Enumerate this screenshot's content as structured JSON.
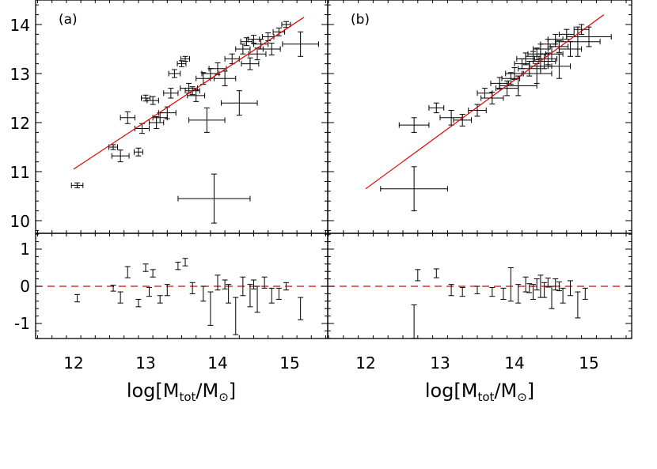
{
  "colors": {
    "fit_line": "#e00000",
    "zero_line": "#e00000",
    "points": "#000000",
    "frame": "#000000"
  },
  "x_axis": {
    "title_prefix": "log[M",
    "title_sub1": "tot",
    "title_mid": "/M",
    "title_sun": "⊙",
    "title_suffix": "]",
    "panels": [
      {
        "ticks": [
          "12",
          "13",
          "14",
          "15"
        ]
      },
      {
        "ticks": [
          "12",
          "13",
          "14",
          "15"
        ]
      }
    ]
  },
  "chart_data": [
    {
      "type": "scatter",
      "panel_label": "(a)",
      "xlim": [
        11.5,
        15.5
      ],
      "ylim": [
        9.7,
        14.5
      ],
      "y_ticks": [
        "10",
        "11",
        "12",
        "13",
        "14"
      ],
      "fit_line": {
        "x": [
          12.0,
          15.2
        ],
        "y": [
          11.05,
          14.15
        ]
      },
      "representative_error": {
        "x": 13.95,
        "y": 10.45,
        "xerr": 0.5,
        "yerr": 0.5
      },
      "points": [
        {
          "x": 12.05,
          "y": 10.72,
          "xerr": 0.08,
          "yerr": 0.05
        },
        {
          "x": 12.55,
          "y": 11.5,
          "xerr": 0.06,
          "yerr": 0.05
        },
        {
          "x": 12.65,
          "y": 11.32,
          "xerr": 0.12,
          "yerr": 0.12
        },
        {
          "x": 12.9,
          "y": 11.4,
          "xerr": 0.06,
          "yerr": 0.08
        },
        {
          "x": 12.75,
          "y": 12.1,
          "xerr": 0.1,
          "yerr": 0.12
        },
        {
          "x": 12.95,
          "y": 11.88,
          "xerr": 0.1,
          "yerr": 0.1
        },
        {
          "x": 13.0,
          "y": 12.5,
          "xerr": 0.06,
          "yerr": 0.06
        },
        {
          "x": 13.1,
          "y": 12.45,
          "xerr": 0.08,
          "yerr": 0.08
        },
        {
          "x": 13.15,
          "y": 12.0,
          "xerr": 0.1,
          "yerr": 0.12
        },
        {
          "x": 13.3,
          "y": 12.2,
          "xerr": 0.12,
          "yerr": 0.12
        },
        {
          "x": 13.35,
          "y": 12.6,
          "xerr": 0.1,
          "yerr": 0.1
        },
        {
          "x": 13.4,
          "y": 13.0,
          "xerr": 0.08,
          "yerr": 0.08
        },
        {
          "x": 13.5,
          "y": 13.2,
          "xerr": 0.06,
          "yerr": 0.06
        },
        {
          "x": 13.55,
          "y": 13.3,
          "xerr": 0.06,
          "yerr": 0.05
        },
        {
          "x": 13.6,
          "y": 12.7,
          "xerr": 0.12,
          "yerr": 0.1
        },
        {
          "x": 13.7,
          "y": 12.55,
          "xerr": 0.12,
          "yerr": 0.12
        },
        {
          "x": 13.8,
          "y": 12.9,
          "xerr": 0.1,
          "yerr": 0.12
        },
        {
          "x": 13.85,
          "y": 12.05,
          "xerr": 0.25,
          "yerr": 0.25
        },
        {
          "x": 13.9,
          "y": 13.0,
          "xerr": 0.12,
          "yerr": 0.1
        },
        {
          "x": 14.0,
          "y": 13.1,
          "xerr": 0.12,
          "yerr": 0.12
        },
        {
          "x": 14.1,
          "y": 12.9,
          "xerr": 0.15,
          "yerr": 0.15
        },
        {
          "x": 14.2,
          "y": 13.3,
          "xerr": 0.1,
          "yerr": 0.1
        },
        {
          "x": 14.3,
          "y": 12.4,
          "xerr": 0.25,
          "yerr": 0.25
        },
        {
          "x": 14.35,
          "y": 13.5,
          "xerr": 0.1,
          "yerr": 0.1
        },
        {
          "x": 14.45,
          "y": 13.2,
          "xerr": 0.12,
          "yerr": 0.12
        },
        {
          "x": 14.5,
          "y": 13.7,
          "xerr": 0.08,
          "yerr": 0.08
        },
        {
          "x": 14.55,
          "y": 13.4,
          "xerr": 0.12,
          "yerr": 0.12
        },
        {
          "x": 14.6,
          "y": 13.6,
          "xerr": 0.1,
          "yerr": 0.1
        },
        {
          "x": 14.7,
          "y": 13.75,
          "xerr": 0.08,
          "yerr": 0.08
        },
        {
          "x": 14.75,
          "y": 13.5,
          "xerr": 0.12,
          "yerr": 0.12
        },
        {
          "x": 14.85,
          "y": 13.85,
          "xerr": 0.08,
          "yerr": 0.08
        },
        {
          "x": 14.95,
          "y": 14.0,
          "xerr": 0.06,
          "yerr": 0.06
        },
        {
          "x": 15.15,
          "y": 13.6,
          "xerr": 0.25,
          "yerr": 0.25
        },
        {
          "x": 14.4,
          "y": 13.65,
          "xerr": 0.08,
          "yerr": 0.08
        },
        {
          "x": 13.65,
          "y": 12.65,
          "xerr": 0.1,
          "yerr": 0.08
        },
        {
          "x": 13.2,
          "y": 12.1,
          "xerr": 0.1,
          "yerr": 0.1
        }
      ],
      "residual_panel": {
        "ylim": [
          -1.4,
          1.4
        ],
        "y_ticks": [
          "-1",
          "0",
          "1"
        ],
        "zero_line": 0,
        "points": [
          {
            "x": 12.05,
            "y": -0.32,
            "yerr": 0.1
          },
          {
            "x": 12.55,
            "y": -0.05,
            "yerr": 0.08
          },
          {
            "x": 12.65,
            "y": -0.3,
            "yerr": 0.15
          },
          {
            "x": 12.75,
            "y": 0.38,
            "yerr": 0.15
          },
          {
            "x": 12.9,
            "y": -0.45,
            "yerr": 0.1
          },
          {
            "x": 13.0,
            "y": 0.5,
            "yerr": 0.1
          },
          {
            "x": 13.05,
            "y": -0.15,
            "yerr": 0.12
          },
          {
            "x": 13.1,
            "y": 0.35,
            "yerr": 0.1
          },
          {
            "x": 13.3,
            "y": -0.1,
            "yerr": 0.15
          },
          {
            "x": 13.45,
            "y": 0.55,
            "yerr": 0.1
          },
          {
            "x": 13.55,
            "y": 0.65,
            "yerr": 0.1
          },
          {
            "x": 13.65,
            "y": -0.05,
            "yerr": 0.15
          },
          {
            "x": 13.8,
            "y": -0.2,
            "yerr": 0.2
          },
          {
            "x": 13.9,
            "y": -0.6,
            "yerr": 0.45
          },
          {
            "x": 14.0,
            "y": 0.1,
            "yerr": 0.2
          },
          {
            "x": 14.15,
            "y": -0.2,
            "yerr": 0.25
          },
          {
            "x": 14.25,
            "y": -0.8,
            "yerr": 0.5
          },
          {
            "x": 14.35,
            "y": 0.0,
            "yerr": 0.25
          },
          {
            "x": 14.45,
            "y": -0.25,
            "yerr": 0.3
          },
          {
            "x": 14.55,
            "y": -0.35,
            "yerr": 0.35
          },
          {
            "x": 14.65,
            "y": 0.1,
            "yerr": 0.15
          },
          {
            "x": 14.75,
            "y": -0.25,
            "yerr": 0.2
          },
          {
            "x": 14.85,
            "y": -0.2,
            "yerr": 0.15
          },
          {
            "x": 14.95,
            "y": 0.0,
            "yerr": 0.1
          },
          {
            "x": 15.15,
            "y": -0.6,
            "yerr": 0.3
          },
          {
            "x": 13.2,
            "y": -0.35,
            "yerr": 0.1
          },
          {
            "x": 14.1,
            "y": 0.05,
            "yerr": 0.12
          },
          {
            "x": 14.5,
            "y": 0.05,
            "yerr": 0.12
          }
        ]
      }
    },
    {
      "type": "scatter",
      "panel_label": "(b)",
      "xlim": [
        11.5,
        15.5
      ],
      "ylim": [
        9.7,
        14.5
      ],
      "y_ticks": [
        "10",
        "11",
        "12",
        "13",
        "14"
      ],
      "fit_line": {
        "x": [
          12.0,
          15.2
        ],
        "y": [
          10.65,
          14.2
        ]
      },
      "representative_error": {
        "x": 12.65,
        "y": 10.65,
        "xerr": 0.45,
        "yerr": 0.45
      },
      "points": [
        {
          "x": 12.65,
          "y": 11.95,
          "xerr": 0.2,
          "yerr": 0.15
        },
        {
          "x": 12.95,
          "y": 12.3,
          "xerr": 0.1,
          "yerr": 0.1
        },
        {
          "x": 13.15,
          "y": 12.1,
          "xerr": 0.15,
          "yerr": 0.15
        },
        {
          "x": 13.3,
          "y": 12.05,
          "xerr": 0.12,
          "yerr": 0.12
        },
        {
          "x": 13.5,
          "y": 12.25,
          "xerr": 0.12,
          "yerr": 0.12
        },
        {
          "x": 13.6,
          "y": 12.6,
          "xerr": 0.1,
          "yerr": 0.1
        },
        {
          "x": 13.7,
          "y": 12.5,
          "xerr": 0.15,
          "yerr": 0.12
        },
        {
          "x": 13.8,
          "y": 12.8,
          "xerr": 0.12,
          "yerr": 0.12
        },
        {
          "x": 13.9,
          "y": 12.7,
          "xerr": 0.15,
          "yerr": 0.15
        },
        {
          "x": 14.0,
          "y": 13.0,
          "xerr": 0.12,
          "yerr": 0.12
        },
        {
          "x": 14.05,
          "y": 12.75,
          "xerr": 0.25,
          "yerr": 0.2
        },
        {
          "x": 14.1,
          "y": 13.2,
          "xerr": 0.1,
          "yerr": 0.1
        },
        {
          "x": 14.2,
          "y": 13.1,
          "xerr": 0.15,
          "yerr": 0.15
        },
        {
          "x": 14.25,
          "y": 13.35,
          "xerr": 0.1,
          "yerr": 0.1
        },
        {
          "x": 14.3,
          "y": 13.0,
          "xerr": 0.2,
          "yerr": 0.2
        },
        {
          "x": 14.35,
          "y": 13.5,
          "xerr": 0.1,
          "yerr": 0.1
        },
        {
          "x": 14.4,
          "y": 13.25,
          "xerr": 0.15,
          "yerr": 0.15
        },
        {
          "x": 14.45,
          "y": 13.6,
          "xerr": 0.1,
          "yerr": 0.1
        },
        {
          "x": 14.5,
          "y": 13.4,
          "xerr": 0.15,
          "yerr": 0.15
        },
        {
          "x": 14.55,
          "y": 13.7,
          "xerr": 0.1,
          "yerr": 0.1
        },
        {
          "x": 14.6,
          "y": 13.15,
          "xerr": 0.15,
          "yerr": 0.25
        },
        {
          "x": 14.7,
          "y": 13.8,
          "xerr": 0.1,
          "yerr": 0.1
        },
        {
          "x": 14.75,
          "y": 13.5,
          "xerr": 0.15,
          "yerr": 0.15
        },
        {
          "x": 14.85,
          "y": 13.65,
          "xerr": 0.3,
          "yerr": 0.3
        },
        {
          "x": 14.9,
          "y": 13.9,
          "xerr": 0.1,
          "yerr": 0.1
        },
        {
          "x": 15.0,
          "y": 13.75,
          "xerr": 0.3,
          "yerr": 0.2
        },
        {
          "x": 14.15,
          "y": 13.3,
          "xerr": 0.12,
          "yerr": 0.12
        },
        {
          "x": 14.3,
          "y": 13.4,
          "xerr": 0.12,
          "yerr": 0.12
        },
        {
          "x": 14.45,
          "y": 13.3,
          "xerr": 0.12,
          "yerr": 0.12
        },
        {
          "x": 14.6,
          "y": 13.55,
          "xerr": 0.12,
          "yerr": 0.12
        },
        {
          "x": 13.95,
          "y": 12.9,
          "xerr": 0.12,
          "yerr": 0.12
        },
        {
          "x": 14.35,
          "y": 13.15,
          "xerr": 0.15,
          "yerr": 0.15
        }
      ],
      "residual_panel": {
        "ylim": [
          -1.4,
          1.4
        ],
        "y_ticks": [
          "-1",
          "0",
          "1"
        ],
        "zero_line": 0,
        "points": [
          {
            "x": 12.65,
            "y": -0.95,
            "yerr": 0.45
          },
          {
            "x": 12.7,
            "y": 0.3,
            "yerr": 0.15
          },
          {
            "x": 12.95,
            "y": 0.35,
            "yerr": 0.12
          },
          {
            "x": 13.15,
            "y": -0.1,
            "yerr": 0.15
          },
          {
            "x": 13.3,
            "y": -0.15,
            "yerr": 0.12
          },
          {
            "x": 13.5,
            "y": -0.1,
            "yerr": 0.1
          },
          {
            "x": 13.7,
            "y": -0.15,
            "yerr": 0.12
          },
          {
            "x": 13.85,
            "y": -0.2,
            "yerr": 0.15
          },
          {
            "x": 13.95,
            "y": 0.05,
            "yerr": 0.45
          },
          {
            "x": 14.05,
            "y": -0.2,
            "yerr": 0.25
          },
          {
            "x": 14.15,
            "y": 0.05,
            "yerr": 0.2
          },
          {
            "x": 14.25,
            "y": -0.15,
            "yerr": 0.2
          },
          {
            "x": 14.35,
            "y": 0.0,
            "yerr": 0.3
          },
          {
            "x": 14.4,
            "y": -0.1,
            "yerr": 0.2
          },
          {
            "x": 14.5,
            "y": -0.3,
            "yerr": 0.3
          },
          {
            "x": 14.55,
            "y": 0.05,
            "yerr": 0.15
          },
          {
            "x": 14.65,
            "y": -0.25,
            "yerr": 0.2
          },
          {
            "x": 14.75,
            "y": -0.05,
            "yerr": 0.2
          },
          {
            "x": 14.85,
            "y": -0.5,
            "yerr": 0.35
          },
          {
            "x": 14.95,
            "y": -0.2,
            "yerr": 0.15
          },
          {
            "x": 14.3,
            "y": 0.05,
            "yerr": 0.15
          },
          {
            "x": 14.45,
            "y": 0.1,
            "yerr": 0.12
          },
          {
            "x": 14.2,
            "y": -0.05,
            "yerr": 0.12
          },
          {
            "x": 14.6,
            "y": 0.0,
            "yerr": 0.12
          }
        ]
      }
    }
  ]
}
